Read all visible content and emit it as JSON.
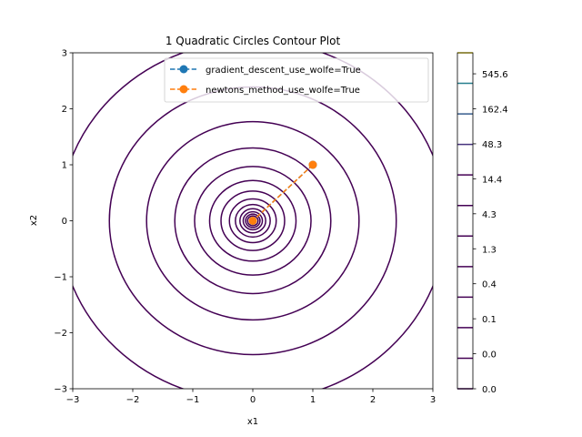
{
  "chart_data": {
    "type": "contour",
    "title": "1 Quadratic Circles Contour Plot",
    "xlabel": "x1",
    "ylabel": "x2",
    "xlim": [
      -3,
      3
    ],
    "ylim": [
      -3,
      3
    ],
    "xticks": [
      "−3",
      "−2",
      "−1",
      "0",
      "1",
      "2",
      "3"
    ],
    "yticks": [
      "−3",
      "−2",
      "−1",
      "0",
      "1",
      "2",
      "3"
    ],
    "contour_radii": [
      0.088,
      0.12,
      0.16,
      0.215,
      0.29,
      0.39,
      0.53,
      0.72,
      0.97,
      1.3,
      1.77,
      2.39,
      3.22
    ],
    "contour_color": "#440154",
    "series": [
      {
        "name": "gradient_descent_use_wolfe=True",
        "color": "#1f77b4",
        "x": [
          1,
          0
        ],
        "y": [
          1,
          0
        ]
      },
      {
        "name": "newtons_method_use_wolfe=True",
        "color": "#ff7f0e",
        "x": [
          1,
          0
        ],
        "y": [
          1,
          0
        ]
      }
    ],
    "legend": "top-right",
    "colorbar": {
      "ticks": [
        "0.0",
        "0.0",
        "0.1",
        "0.4",
        "1.3",
        "4.3",
        "14.4",
        "48.3",
        "162.4",
        "545.6"
      ],
      "level_colors": [
        "#440154",
        "#440154",
        "#440154",
        "#440154",
        "#440154",
        "#440154",
        "#440154",
        "#440154",
        "#46327e",
        "#365c8d",
        "#277f8e",
        "#fde725"
      ]
    }
  }
}
